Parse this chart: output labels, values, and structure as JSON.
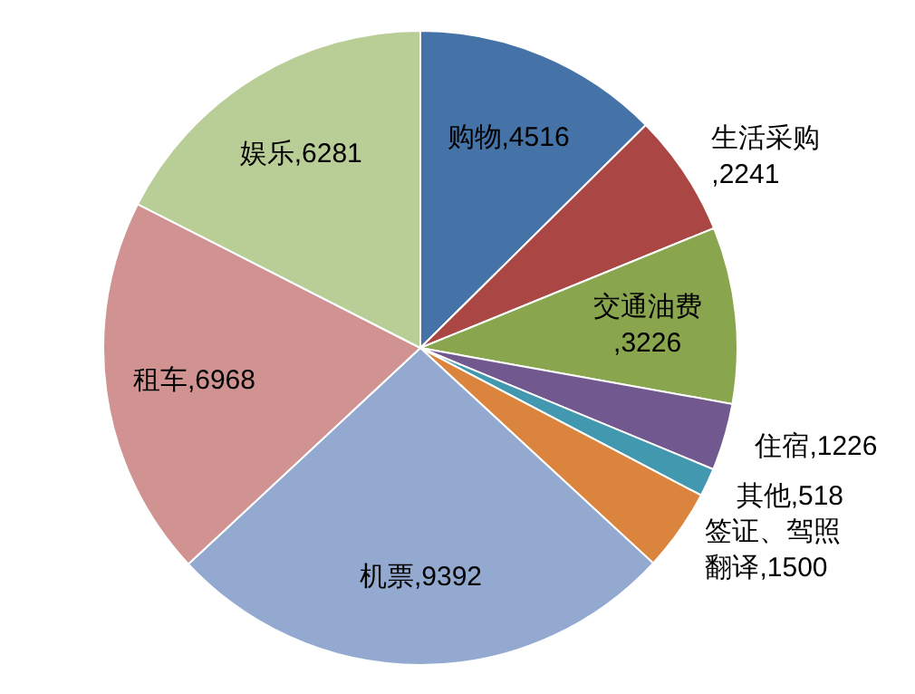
{
  "chart_data": {
    "type": "pie",
    "categories": [
      "购物",
      "生活采购",
      "交通油费",
      "住宿",
      "其他",
      "签证、驾照翻译",
      "机票",
      "租车",
      "娱乐"
    ],
    "values": [
      4516,
      2241,
      3226,
      1226,
      518,
      1500,
      9392,
      6968,
      6281
    ],
    "value_labels": [
      ",4516",
      ",2241",
      ",3226",
      ",1226",
      ",518",
      ",1500",
      ",9392",
      ",6968",
      ",6281"
    ],
    "colors": [
      "#4572a7",
      "#aa4643",
      "#89a54e",
      "#71588f",
      "#4198af",
      "#db843d",
      "#93a9d0",
      "#d19392",
      "#b9cd96"
    ],
    "legend": false
  }
}
